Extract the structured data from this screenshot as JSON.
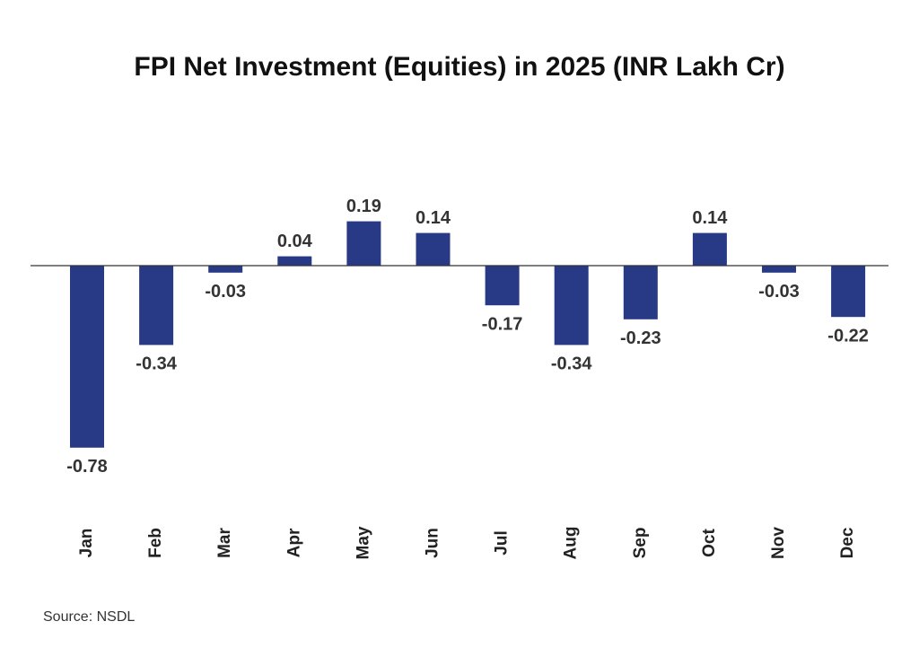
{
  "chart_data": {
    "type": "bar",
    "title": "FPI Net Investment (Equities) in 2025 (INR Lakh Cr)",
    "categories": [
      "Jan",
      "Feb",
      "Mar",
      "Apr",
      "May",
      "Jun",
      "Jul",
      "Aug",
      "Sep",
      "Oct",
      "Nov",
      "Dec"
    ],
    "values": [
      -0.78,
      -0.34,
      -0.03,
      0.04,
      0.19,
      0.14,
      -0.17,
      -0.34,
      -0.23,
      0.14,
      -0.03,
      -0.22
    ],
    "color": "#283a86",
    "source": "Source: NSDL"
  }
}
